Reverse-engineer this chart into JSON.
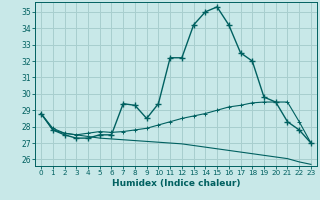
{
  "title": "",
  "xlabel": "Humidex (Indice chaleur)",
  "bg_color": "#c8e8e8",
  "grid_color": "#a8cece",
  "line_color": "#006060",
  "xlim": [
    -0.5,
    23.5
  ],
  "ylim": [
    25.6,
    35.6
  ],
  "yticks": [
    26,
    27,
    28,
    29,
    30,
    31,
    32,
    33,
    34,
    35
  ],
  "xticks": [
    0,
    1,
    2,
    3,
    4,
    5,
    6,
    7,
    8,
    9,
    10,
    11,
    12,
    13,
    14,
    15,
    16,
    17,
    18,
    19,
    20,
    21,
    22,
    23
  ],
  "main_values": [
    28.8,
    27.8,
    27.5,
    27.3,
    27.3,
    27.5,
    27.5,
    29.4,
    29.3,
    28.5,
    29.4,
    32.2,
    32.2,
    34.2,
    35.0,
    35.3,
    34.2,
    32.5,
    32.0,
    29.8,
    29.5,
    28.3,
    27.8,
    27.0
  ],
  "upper_line": [
    28.8,
    27.9,
    27.6,
    27.5,
    27.6,
    27.7,
    27.65,
    27.7,
    27.8,
    27.9,
    28.1,
    28.3,
    28.5,
    28.65,
    28.8,
    29.0,
    29.2,
    29.3,
    29.45,
    29.5,
    29.5,
    29.5,
    28.3,
    27.0
  ],
  "lower_line": [
    28.8,
    27.8,
    27.6,
    27.5,
    27.4,
    27.3,
    27.25,
    27.2,
    27.15,
    27.1,
    27.05,
    27.0,
    26.95,
    26.85,
    26.75,
    26.65,
    26.55,
    26.45,
    26.35,
    26.25,
    26.15,
    26.05,
    25.85,
    25.7
  ]
}
